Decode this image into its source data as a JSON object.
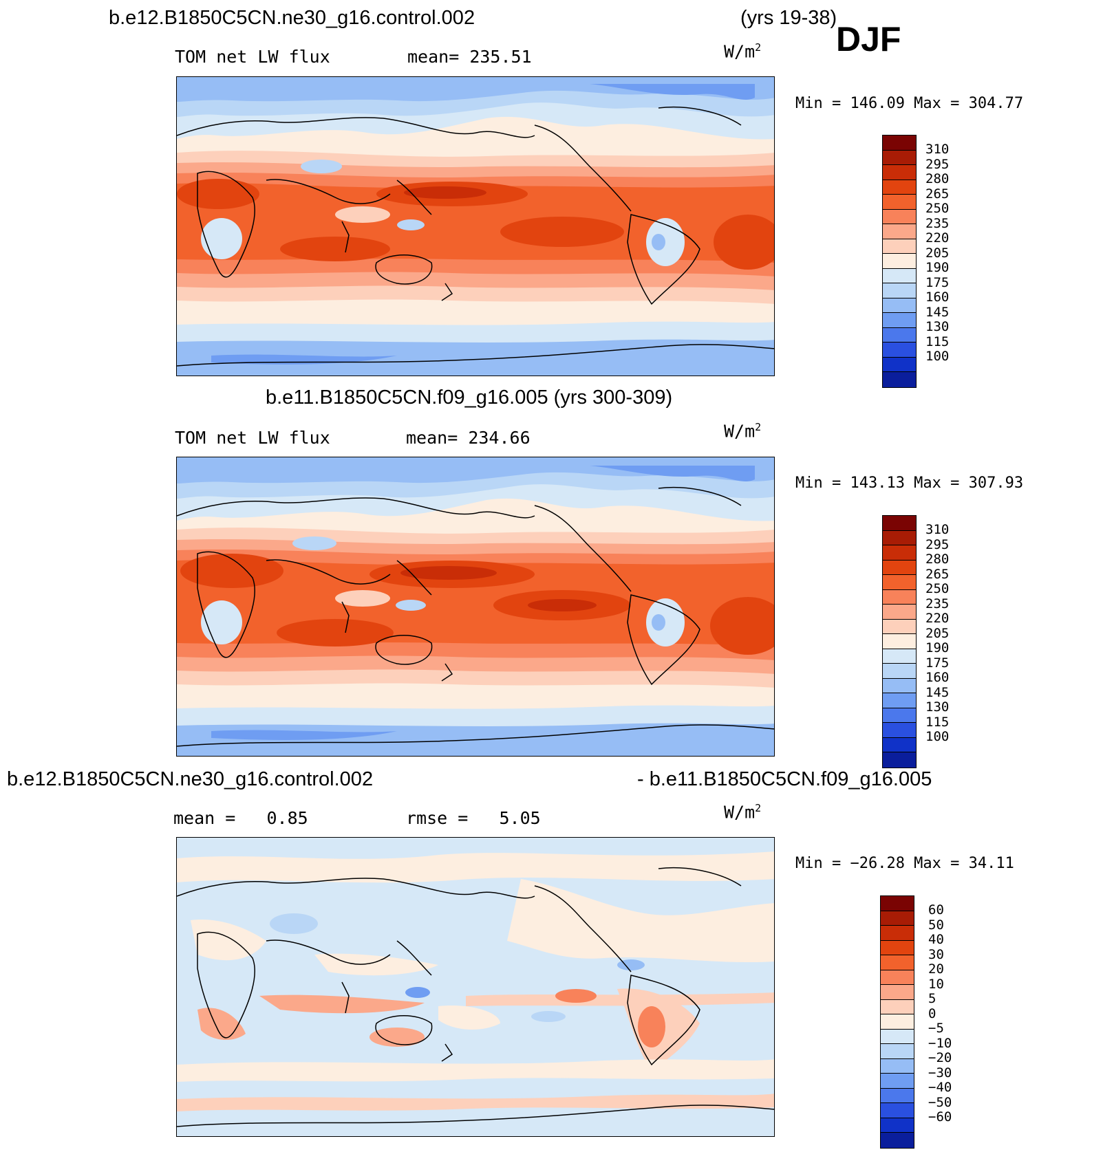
{
  "header": {
    "case_top": "b.e12.B1850C5CN.ne30_g16.control.002",
    "years_top": "(yrs 19-38)",
    "season": "DJF",
    "case_mid": "b.e11.B1850C5CN.f09_g16.005 (yrs 300-309)",
    "case_diff_left": "b.e12.B1850C5CN.ne30_g16.control.002",
    "case_diff_right": "- b.e11.B1850C5CN.f09_g16.005"
  },
  "panels": [
    {
      "variable": "TOM net LW flux",
      "stat_label": "mean=",
      "stat_value": "235.51",
      "units": "W/m",
      "units_exp": "2",
      "minmax": "Min = 146.09 Max = 304.77"
    },
    {
      "variable": "TOM net LW flux",
      "stat_label": "mean=",
      "stat_value": "234.66",
      "units": "W/m",
      "units_exp": "2",
      "minmax": "Min = 143.13 Max = 307.93"
    },
    {
      "stat_label": "mean =",
      "stat_value": "0.85",
      "stat2_label": "rmse =",
      "stat2_value": "5.05",
      "units": "W/m",
      "units_exp": "2",
      "minmax": "Min = −26.28 Max =  34.11"
    }
  ],
  "colorbars": {
    "abs_ticks": [
      "310",
      "295",
      "280",
      "265",
      "250",
      "235",
      "220",
      "205",
      "190",
      "175",
      "160",
      "145",
      "130",
      "115",
      "100"
    ],
    "diff_ticks": [
      "60",
      "50",
      "40",
      "30",
      "20",
      "10",
      "5",
      "0",
      "−5",
      "−10",
      "−20",
      "−30",
      "−40",
      "−50",
      "−60"
    ],
    "colors": [
      "#7a0403",
      "#a81c05",
      "#c92d07",
      "#e2440f",
      "#f2622c",
      "#f8825a",
      "#fba88a",
      "#fdd0bb",
      "#fdeee0",
      "#d6e8f7",
      "#b9d6f6",
      "#96bdf5",
      "#6f9df2",
      "#4b78ec",
      "#2a50e0",
      "#1032c8",
      "#0a1e9c"
    ]
  }
}
